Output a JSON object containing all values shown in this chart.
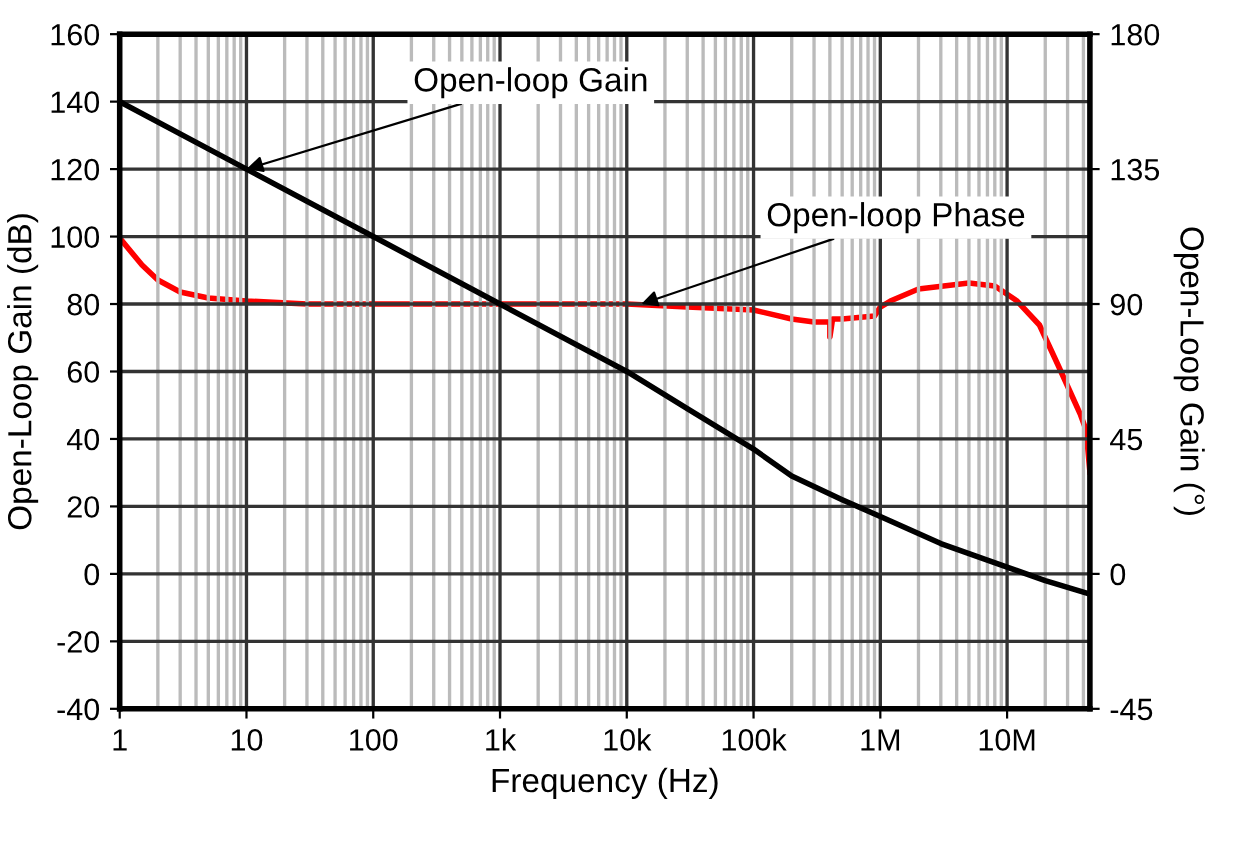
{
  "chart_data": {
    "type": "line",
    "xlabel": "Frequency (Hz)",
    "ylabel": "Open-Loop Gain (dB)",
    "y2label": "Open-Loop Gain (°)",
    "log": "x",
    "grid": true,
    "marker": "none",
    "line_style": "solid",
    "xlim": [
      1,
      45000000
    ],
    "xticks": [
      {
        "value": 1,
        "label": "1"
      },
      {
        "value": 10,
        "label": "10"
      },
      {
        "value": 100,
        "label": "100"
      },
      {
        "value": 1000,
        "label": "1k"
      },
      {
        "value": 10000,
        "label": "10k"
      },
      {
        "value": 100000,
        "label": "100k"
      },
      {
        "value": 1000000,
        "label": "1M"
      },
      {
        "value": 10000000,
        "label": "10M"
      }
    ],
    "ylim": [
      -40,
      160
    ],
    "yticks": [
      -40,
      -20,
      0,
      20,
      40,
      60,
      80,
      100,
      120,
      140,
      160
    ],
    "y2lim": [
      -45,
      180
    ],
    "y2ticks": [
      -45,
      0,
      45,
      90,
      135,
      180
    ],
    "series": [
      {
        "color": "#000000",
        "x": [
          1,
          10,
          100,
          1000,
          10000,
          30000,
          100000,
          200000,
          500000,
          1000000,
          3000000,
          10000000,
          20000000,
          45000000
        ],
        "values": [
          140,
          120,
          100,
          80,
          60,
          49,
          37,
          29,
          22,
          17,
          9,
          2,
          -2,
          -6
        ]
      },
      {
        "color": "#ff0000",
        "axis": "y2",
        "x": [
          1,
          1.5,
          2,
          3,
          5,
          10,
          30,
          100,
          1000,
          10000,
          30000,
          100000,
          200000,
          300000,
          400000,
          400000,
          420000,
          500000,
          900000,
          1000000,
          1200000,
          2000000,
          5000000,
          8000000,
          12000000,
          18000000,
          25000000,
          32000000,
          38000000,
          42000000,
          45000000
        ],
        "values": [
          112,
          103,
          98,
          94,
          92,
          91,
          90,
          90,
          90,
          90,
          89,
          88,
          85,
          84,
          84,
          79,
          85,
          85,
          86,
          89,
          91,
          95,
          97,
          96,
          91,
          83,
          70,
          60,
          53,
          48,
          34
        ]
      }
    ],
    "annotations": [
      {
        "text": "Open-loop Gain",
        "x": 10,
        "y": 120
      },
      {
        "text": "Open-loop Phase",
        "x": 13000,
        "y": 80
      }
    ]
  }
}
